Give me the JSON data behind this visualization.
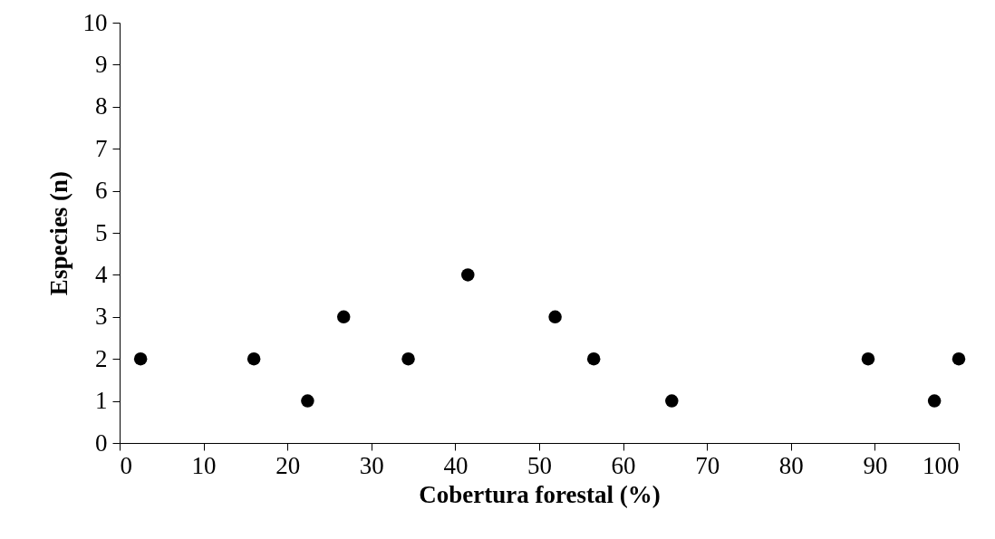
{
  "chart_data": {
    "type": "scatter",
    "xlabel": "Cobertura forestal (%)",
    "ylabel": "Especies (n)",
    "x": [
      2.5,
      16,
      22.4,
      26.7,
      34.4,
      41.5,
      51.9,
      56.5,
      65.8,
      89.2,
      97.1,
      100
    ],
    "series": [
      {
        "color": "#000000",
        "values": [
          2,
          2,
          1,
          3,
          2,
          4,
          3,
          2,
          1,
          2,
          1,
          2
        ]
      }
    ],
    "xlim": [
      0,
      100
    ],
    "xticks": [
      0,
      10,
      20,
      30,
      40,
      50,
      60,
      70,
      80,
      90,
      100
    ],
    "ylim": [
      0,
      10
    ],
    "yticks": [
      0,
      1,
      2,
      3,
      4,
      5,
      6,
      7,
      8,
      9,
      10
    ],
    "grid": false,
    "legend": false,
    "marker": "circle"
  }
}
